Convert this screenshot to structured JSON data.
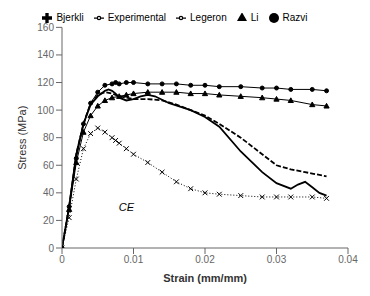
{
  "chart_data": {
    "type": "line",
    "title": "",
    "xlabel": "Strain (mm/mm)",
    "ylabel": "Stress (MPa)",
    "xlim": [
      0,
      0.04
    ],
    "ylim": [
      0,
      160
    ],
    "xticks": [
      0,
      0.01,
      0.02,
      0.03,
      0.04
    ],
    "yticks": [
      0,
      20,
      40,
      60,
      80,
      100,
      120,
      140,
      160
    ],
    "grid": false,
    "legend": "top",
    "series": [
      {
        "name": "Razvi",
        "color": "#000000",
        "marker": "circle",
        "line_style": "solid",
        "x": [
          0,
          0.001,
          0.002,
          0.003,
          0.004,
          0.005,
          0.006,
          0.007,
          0.0075,
          0.008,
          0.009,
          0.01,
          0.012,
          0.014,
          0.016,
          0.018,
          0.02,
          0.022,
          0.025,
          0.028,
          0.03,
          0.032,
          0.035,
          0.037
        ],
        "values": [
          0,
          30,
          65,
          90,
          105,
          113,
          118,
          119,
          120,
          119,
          120,
          120,
          119,
          119,
          119,
          118,
          118,
          117,
          117,
          116,
          116,
          115,
          115,
          114
        ]
      },
      {
        "name": "Experimental",
        "color": "#000000",
        "marker": "none",
        "line_style": "solid",
        "x": [
          0,
          0.001,
          0.002,
          0.003,
          0.004,
          0.005,
          0.006,
          0.0065,
          0.007,
          0.0075,
          0.008,
          0.009,
          0.01,
          0.011,
          0.012,
          0.013,
          0.015,
          0.018,
          0.02,
          0.022,
          0.025,
          0.028,
          0.03,
          0.032,
          0.033,
          0.034,
          0.035,
          0.036,
          0.037
        ],
        "values": [
          0,
          30,
          68,
          90,
          104,
          110,
          114,
          115,
          114,
          112,
          109,
          107,
          108,
          110,
          111,
          110,
          105,
          100,
          95,
          88,
          70,
          55,
          47,
          43,
          46,
          48,
          44,
          40,
          38
        ]
      },
      {
        "name": "Legeron",
        "color": "#000000",
        "marker": "none",
        "line_style": "dashed",
        "x": [
          0,
          0.001,
          0.002,
          0.003,
          0.004,
          0.005,
          0.006,
          0.007,
          0.0075,
          0.008,
          0.009,
          0.01,
          0.012,
          0.014,
          0.016,
          0.018,
          0.02,
          0.022,
          0.025,
          0.028,
          0.03,
          0.032,
          0.034,
          0.035,
          0.036,
          0.037
        ],
        "values": [
          0,
          30,
          68,
          90,
          105,
          111,
          113,
          112,
          111,
          110,
          109,
          108,
          108,
          107,
          104,
          100,
          96,
          90,
          80,
          68,
          60,
          57,
          55,
          54,
          53,
          52
        ]
      },
      {
        "name": "Li",
        "color": "#000000",
        "marker": "triangle",
        "line_style": "solid",
        "x": [
          0,
          0.001,
          0.002,
          0.003,
          0.004,
          0.005,
          0.006,
          0.007,
          0.008,
          0.009,
          0.01,
          0.012,
          0.014,
          0.016,
          0.018,
          0.02,
          0.022,
          0.025,
          0.028,
          0.03,
          0.032,
          0.035,
          0.037
        ],
        "values": [
          0,
          28,
          62,
          84,
          96,
          103,
          107,
          109,
          110,
          111,
          112,
          113,
          113,
          113,
          112,
          112,
          111,
          110,
          109,
          108,
          107,
          104,
          103
        ]
      },
      {
        "name": "Bjerkli",
        "color": "#000000",
        "marker": "x",
        "line_style": "dotted",
        "x": [
          0,
          0.001,
          0.002,
          0.003,
          0.004,
          0.005,
          0.006,
          0.007,
          0.0075,
          0.008,
          0.009,
          0.01,
          0.012,
          0.014,
          0.016,
          0.018,
          0.02,
          0.022,
          0.025,
          0.028,
          0.03,
          0.032,
          0.035,
          0.037
        ],
        "values": [
          0,
          22,
          50,
          72,
          83,
          87,
          84,
          80,
          78,
          76,
          72,
          68,
          62,
          55,
          48,
          43,
          40,
          39,
          38,
          37,
          37,
          37,
          37,
          36
        ]
      }
    ],
    "annotations": [
      {
        "text": "CE",
        "x": 0.009,
        "y": 30
      }
    ]
  }
}
